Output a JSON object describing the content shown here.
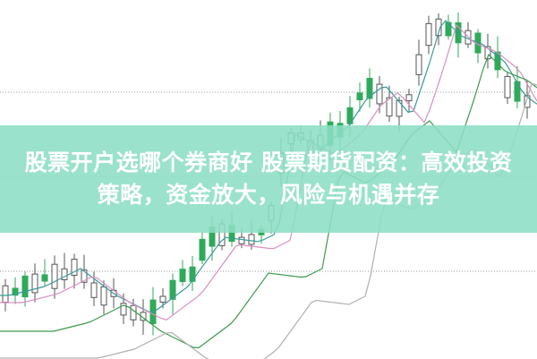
{
  "headline": {
    "line1": "股票开户选哪个券商好 股票期货配资：高效投资",
    "line2": "策略，资金放大，风险与机遇并存"
  },
  "colors": {
    "banner": "#8cdec4",
    "candle_up": "#2eaa5a",
    "candle_hollow": "#ffffff",
    "ma_pink": "#d98fc0",
    "ma_teal": "#3a9a9a",
    "ma_green": "#3c9a4c",
    "ma_gray": "#b0b0b0"
  }
}
